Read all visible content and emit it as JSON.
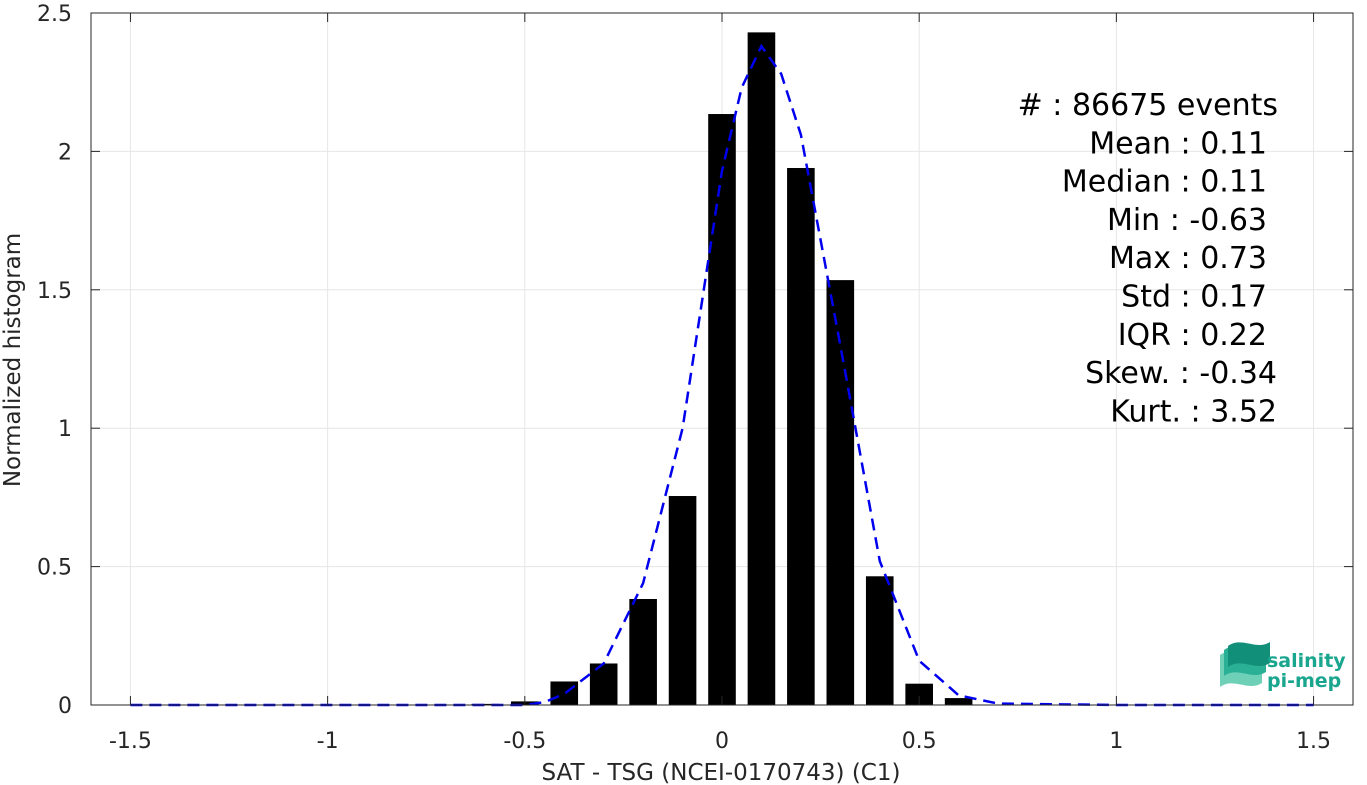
{
  "chart_data": {
    "type": "bar",
    "xlabel": "SAT - TSG (NCEI-0170743) (C1)",
    "ylabel": "Normalized histogram",
    "xlim": [
      -1.6,
      1.6
    ],
    "ylim": [
      0,
      2.5
    ],
    "xticks": [
      -1.5,
      -1,
      -0.5,
      0,
      0.5,
      1,
      1.5
    ],
    "xtick_labels": [
      "-1.5",
      "-1",
      "-0.5",
      "0",
      "0.5",
      "1",
      "1.5"
    ],
    "yticks": [
      0,
      0.5,
      1,
      1.5,
      2,
      2.5
    ],
    "ytick_labels": [
      "0",
      "0.5",
      "1",
      "1.5",
      "2",
      "2.5"
    ],
    "grid": true,
    "bar_color": "#000000",
    "bar_width": 0.07,
    "bars": [
      {
        "x": -0.6,
        "value": 0.004
      },
      {
        "x": -0.5,
        "value": 0.013
      },
      {
        "x": -0.4,
        "value": 0.085
      },
      {
        "x": -0.3,
        "value": 0.15
      },
      {
        "x": -0.2,
        "value": 0.383
      },
      {
        "x": -0.1,
        "value": 0.755
      },
      {
        "x": 0.0,
        "value": 2.135
      },
      {
        "x": 0.1,
        "value": 2.43
      },
      {
        "x": 0.2,
        "value": 1.94
      },
      {
        "x": 0.3,
        "value": 1.535
      },
      {
        "x": 0.4,
        "value": 0.465
      },
      {
        "x": 0.5,
        "value": 0.077
      },
      {
        "x": 0.6,
        "value": 0.025
      }
    ],
    "fit_curve": {
      "color": "#0000ee",
      "style": "dashed",
      "x": [
        -1.5,
        -1.0,
        -0.5,
        -0.45,
        -0.4,
        -0.3,
        -0.2,
        -0.1,
        0.0,
        0.05,
        0.1,
        0.15,
        0.2,
        0.3,
        0.4,
        0.5,
        0.6,
        0.7,
        1.0,
        1.5
      ],
      "y": [
        0.0,
        0.0,
        0.0,
        0.01,
        0.04,
        0.15,
        0.44,
        1.0,
        1.93,
        2.23,
        2.38,
        2.28,
        2.06,
        1.3,
        0.52,
        0.16,
        0.035,
        0.005,
        0.0,
        0.0
      ]
    },
    "stats": [
      {
        "label": "#  : 86675 events"
      },
      {
        "label": "Mean : 0.11"
      },
      {
        "label": "Median : 0.11"
      },
      {
        "label": "Min : -0.63"
      },
      {
        "label": "Max : 0.73"
      },
      {
        "label": "Std : 0.17"
      },
      {
        "label": "IQR : 0.22"
      },
      {
        "label": "Skew. : -0.34"
      },
      {
        "label": "Kurt. : 3.52"
      }
    ]
  },
  "logo": {
    "line1": "salinity",
    "line2": "pi-mep",
    "color": "#1aa68e"
  }
}
